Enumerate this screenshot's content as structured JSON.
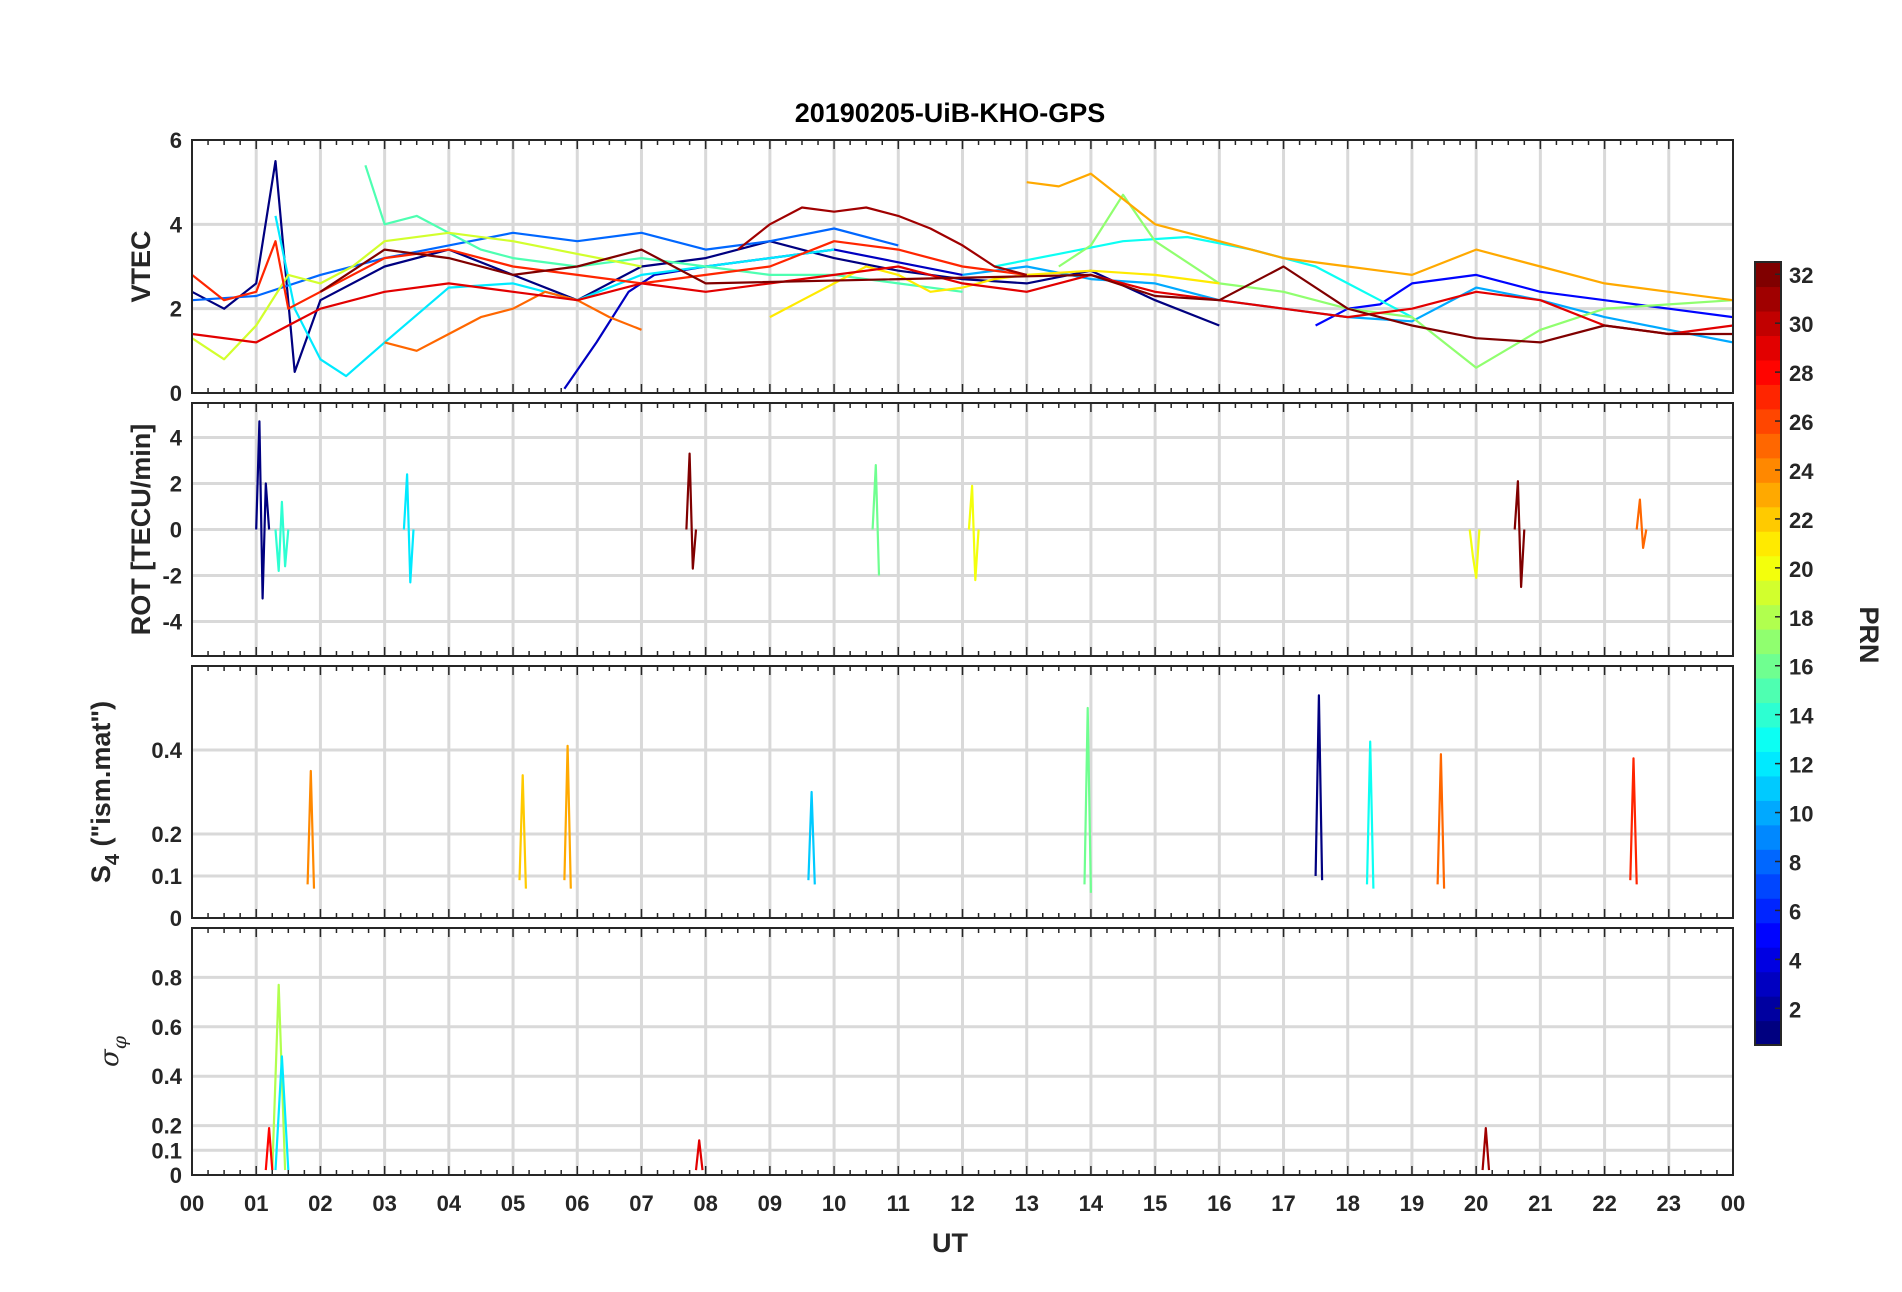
{
  "title": "20190205-UiB-KHO-GPS",
  "x_axis": {
    "label": "UT",
    "tick_labels": [
      "00",
      "01",
      "02",
      "03",
      "04",
      "05",
      "06",
      "07",
      "08",
      "09",
      "10",
      "11",
      "12",
      "13",
      "14",
      "15",
      "16",
      "17",
      "18",
      "19",
      "20",
      "21",
      "22",
      "23",
      "00"
    ]
  },
  "colorbar": {
    "label": "PRN",
    "range": [
      1,
      32
    ],
    "tick_labels": [
      "2",
      "4",
      "6",
      "8",
      "10",
      "12",
      "14",
      "16",
      "18",
      "20",
      "22",
      "24",
      "26",
      "28",
      "30",
      "32"
    ]
  },
  "chart_data": [
    {
      "type": "line",
      "ylabel": "VTEC",
      "ylim": [
        0,
        6
      ],
      "yticks": [
        "0",
        "2",
        "4",
        "6"
      ],
      "grid": true,
      "x_range_hours": [
        0,
        24
      ],
      "series_color_by": "PRN",
      "series": [
        {
          "prn": 1,
          "x": [
            0.0,
            0.5,
            1.0,
            1.3,
            1.6,
            2.0,
            3.0,
            4.0,
            5.0,
            6.0,
            7.0,
            8.0,
            9.0,
            10.0,
            11.0,
            12.0,
            13.0,
            14.0,
            15.0,
            16.0
          ],
          "y": [
            2.4,
            2.0,
            2.6,
            5.5,
            0.5,
            2.2,
            3.0,
            3.4,
            2.8,
            2.2,
            3.0,
            3.2,
            3.6,
            3.2,
            2.9,
            2.7,
            2.6,
            2.9,
            2.2,
            1.6
          ]
        },
        {
          "prn": 3,
          "x": [
            5.8,
            6.3,
            6.8,
            7.2,
            8.0,
            9.0,
            10.0,
            11.0,
            12.0
          ],
          "y": [
            0.1,
            1.2,
            2.4,
            2.8,
            3.0,
            3.2,
            3.4,
            3.1,
            2.8
          ]
        },
        {
          "prn": 5,
          "x": [
            17.5,
            18.0,
            18.5,
            19.0,
            20.0,
            21.0,
            22.0,
            23.0,
            24.0
          ],
          "y": [
            1.6,
            2.0,
            2.1,
            2.6,
            2.8,
            2.4,
            2.2,
            2.0,
            1.8
          ]
        },
        {
          "prn": 8,
          "x": [
            0.0,
            1.0,
            2.0,
            3.0,
            4.0,
            5.0,
            6.0,
            7.0,
            8.0,
            9.0,
            10.0,
            11.0
          ],
          "y": [
            2.2,
            2.3,
            2.8,
            3.2,
            3.5,
            3.8,
            3.6,
            3.8,
            3.4,
            3.6,
            3.9,
            3.5
          ]
        },
        {
          "prn": 10,
          "x": [
            12.0,
            13.0,
            14.0,
            15.0,
            16.0,
            17.0,
            18.0,
            19.0,
            20.0,
            21.0,
            22.0,
            23.0,
            24.0
          ],
          "y": [
            2.8,
            3.0,
            2.7,
            2.6,
            2.2,
            2.0,
            1.8,
            1.7,
            2.5,
            2.2,
            1.8,
            1.5,
            1.2
          ]
        },
        {
          "prn": 12,
          "x": [
            1.3,
            1.6,
            2.0,
            2.4,
            3.0,
            4.0,
            5.0,
            6.0,
            7.0,
            8.0,
            9.0,
            10.0
          ],
          "y": [
            4.2,
            2.0,
            0.8,
            0.4,
            1.2,
            2.5,
            2.6,
            2.2,
            2.8,
            3.0,
            3.2,
            3.4
          ]
        },
        {
          "prn": 13,
          "x": [
            12.5,
            13.5,
            14.5,
            15.5,
            16.5,
            17.5,
            18.0,
            18.5,
            19.0
          ],
          "y": [
            3.0,
            3.3,
            3.6,
            3.7,
            3.4,
            3.0,
            2.6,
            2.2,
            1.8
          ]
        },
        {
          "prn": 15,
          "x": [
            2.7,
            3.0,
            3.5,
            4.0,
            4.5,
            5.0,
            6.0,
            7.0,
            8.0,
            9.0,
            10.0,
            11.0,
            12.0
          ],
          "y": [
            5.4,
            4.0,
            4.2,
            3.8,
            3.4,
            3.2,
            3.0,
            3.2,
            3.0,
            2.8,
            2.8,
            2.6,
            2.4
          ]
        },
        {
          "prn": 17,
          "x": [
            13.5,
            14.0,
            14.5,
            15.0,
            16.0,
            17.0,
            18.0,
            19.0,
            20.0,
            21.0,
            22.0,
            23.0,
            24.0
          ],
          "y": [
            3.0,
            3.5,
            4.7,
            3.6,
            2.6,
            2.4,
            2.0,
            1.8,
            0.6,
            1.5,
            2.0,
            2.1,
            2.2
          ]
        },
        {
          "prn": 19,
          "x": [
            0.0,
            0.5,
            1.0,
            1.5,
            2.0,
            2.5,
            3.0,
            4.0,
            5.0,
            6.0,
            7.0
          ],
          "y": [
            1.3,
            0.8,
            1.6,
            2.8,
            2.6,
            3.0,
            3.6,
            3.8,
            3.6,
            3.3,
            3.0
          ]
        },
        {
          "prn": 21,
          "x": [
            9.0,
            9.5,
            10.0,
            10.5,
            11.0,
            11.5,
            12.0,
            12.5,
            13.0,
            14.0,
            15.0,
            16.0
          ],
          "y": [
            1.8,
            2.2,
            2.6,
            3.0,
            2.8,
            2.4,
            2.5,
            2.7,
            2.8,
            2.9,
            2.8,
            2.6
          ]
        },
        {
          "prn": 23,
          "x": [
            13.0,
            13.5,
            14.0,
            14.5,
            15.0,
            16.0,
            17.0,
            18.0,
            19.0,
            20.0,
            21.0,
            22.0,
            23.0,
            24.0
          ],
          "y": [
            5.0,
            4.9,
            5.2,
            4.6,
            4.0,
            3.6,
            3.2,
            3.0,
            2.8,
            3.4,
            3.0,
            2.6,
            2.4,
            2.2
          ]
        },
        {
          "prn": 25,
          "x": [
            3.0,
            3.5,
            4.0,
            4.5,
            5.0,
            5.5,
            6.0,
            6.5,
            7.0
          ],
          "y": [
            1.2,
            1.0,
            1.4,
            1.8,
            2.0,
            2.4,
            2.2,
            1.8,
            1.5
          ]
        },
        {
          "prn": 27,
          "x": [
            0.0,
            0.5,
            1.0,
            1.3,
            1.5,
            2.0,
            3.0,
            4.0,
            5.0,
            6.0,
            7.0,
            8.0,
            9.0,
            10.0,
            11.0,
            12.0,
            13.0
          ],
          "y": [
            2.8,
            2.2,
            2.4,
            3.6,
            2.0,
            2.4,
            3.2,
            3.4,
            3.0,
            2.8,
            2.6,
            2.8,
            3.0,
            3.6,
            3.4,
            3.0,
            2.8
          ]
        },
        {
          "prn": 29,
          "x": [
            0.0,
            1.0,
            1.5,
            2.0,
            3.0,
            4.0,
            5.0,
            6.0,
            7.0,
            8.0,
            9.0,
            10.0,
            11.0,
            12.0,
            13.0,
            14.0,
            15.0,
            16.0,
            17.0,
            18.0,
            19.0,
            20.0,
            21.0,
            22.0,
            23.0,
            24.0
          ],
          "y": [
            1.4,
            1.2,
            1.6,
            2.0,
            2.4,
            2.6,
            2.4,
            2.2,
            2.6,
            2.4,
            2.6,
            2.8,
            3.0,
            2.6,
            2.4,
            2.8,
            2.4,
            2.2,
            2.0,
            1.8,
            2.0,
            2.4,
            2.2,
            1.6,
            1.4,
            1.6
          ]
        },
        {
          "prn": 31,
          "x": [
            8.5,
            9.0,
            9.5,
            10.0,
            10.5,
            11.0,
            11.5,
            12.0,
            12.5,
            13.0
          ],
          "y": [
            3.4,
            4.0,
            4.4,
            4.3,
            4.4,
            4.2,
            3.9,
            3.5,
            3.0,
            2.8
          ]
        },
        {
          "prn": 32,
          "x": [
            2.0,
            3.0,
            4.0,
            5.0,
            6.0,
            7.0,
            8.0,
            14.0,
            15.0,
            16.0,
            17.0,
            18.0,
            19.0,
            20.0,
            21.0,
            22.0,
            23.0,
            24.0
          ],
          "y": [
            2.4,
            3.4,
            3.2,
            2.8,
            3.0,
            3.4,
            2.6,
            2.8,
            2.3,
            2.2,
            3.0,
            2.0,
            1.6,
            1.3,
            1.2,
            1.6,
            1.4,
            1.4
          ]
        }
      ]
    },
    {
      "type": "line",
      "ylabel": "ROT [TECU/min]",
      "ylim": [
        -5.5,
        5.5
      ],
      "yticks": [
        "-4",
        "-2",
        "0",
        "2",
        "4"
      ],
      "grid": true,
      "x_range_hours": [
        0,
        24
      ],
      "series_color_by": "PRN",
      "series": [
        {
          "prn": 1,
          "x": [
            1.0,
            1.05,
            1.1,
            1.15,
            1.2
          ],
          "y": [
            0.0,
            4.7,
            -3.0,
            2.0,
            0.0
          ]
        },
        {
          "prn": 14,
          "x": [
            1.3,
            1.35,
            1.4,
            1.45,
            1.5
          ],
          "y": [
            0.0,
            -1.8,
            1.2,
            -1.6,
            0.0
          ]
        },
        {
          "prn": 12,
          "x": [
            3.3,
            3.35,
            3.4,
            3.45
          ],
          "y": [
            0.0,
            2.4,
            -2.3,
            0.0
          ]
        },
        {
          "prn": 32,
          "x": [
            7.7,
            7.75,
            7.8,
            7.85
          ],
          "y": [
            0.0,
            3.3,
            -1.7,
            0.0
          ]
        },
        {
          "prn": 16,
          "x": [
            10.6,
            10.65,
            10.7
          ],
          "y": [
            0.0,
            2.8,
            -2.0
          ]
        },
        {
          "prn": 20,
          "x": [
            12.1,
            12.15,
            12.2,
            12.25
          ],
          "y": [
            0.0,
            1.9,
            -2.2,
            0.0
          ]
        },
        {
          "prn": 20,
          "x": [
            19.9,
            19.95,
            20.0,
            20.05
          ],
          "y": [
            0.0,
            -1.2,
            -2.1,
            0.0
          ]
        },
        {
          "prn": 32,
          "x": [
            20.6,
            20.65,
            20.7,
            20.75
          ],
          "y": [
            0.0,
            2.1,
            -2.5,
            0.0
          ]
        },
        {
          "prn": 25,
          "x": [
            22.5,
            22.55,
            22.6,
            22.65
          ],
          "y": [
            0.0,
            1.3,
            -0.8,
            0.0
          ]
        }
      ]
    },
    {
      "type": "line",
      "ylabel": "S4 (\"ism.mat\")",
      "ylim": [
        0,
        0.6
      ],
      "yticks": [
        "0",
        "0.1",
        "0.2",
        "0.4"
      ],
      "grid": true,
      "x_range_hours": [
        0,
        24
      ],
      "series_color_by": "PRN",
      "series": [
        {
          "prn": 1,
          "x": [
            17.5,
            17.55,
            17.6
          ],
          "y": [
            0.1,
            0.53,
            0.09
          ]
        },
        {
          "prn": 16,
          "x": [
            13.9,
            13.95,
            14.0
          ],
          "y": [
            0.08,
            0.5,
            0.06
          ]
        },
        {
          "prn": 13,
          "x": [
            18.3,
            18.35,
            18.4
          ],
          "y": [
            0.08,
            0.42,
            0.07
          ]
        },
        {
          "prn": 23,
          "x": [
            5.8,
            5.85,
            5.9
          ],
          "y": [
            0.09,
            0.41,
            0.07
          ]
        },
        {
          "prn": 25,
          "x": [
            19.4,
            19.45,
            19.5
          ],
          "y": [
            0.08,
            0.39,
            0.07
          ]
        },
        {
          "prn": 27,
          "x": [
            22.4,
            22.45,
            22.5
          ],
          "y": [
            0.09,
            0.38,
            0.08
          ]
        },
        {
          "prn": 24,
          "x": [
            1.8,
            1.85,
            1.9
          ],
          "y": [
            0.08,
            0.35,
            0.07
          ]
        },
        {
          "prn": 22,
          "x": [
            5.1,
            5.15,
            5.2
          ],
          "y": [
            0.09,
            0.34,
            0.07
          ]
        },
        {
          "prn": 11,
          "x": [
            9.6,
            9.65,
            9.7
          ],
          "y": [
            0.09,
            0.3,
            0.08
          ]
        }
      ]
    },
    {
      "type": "line",
      "ylabel": "σφ",
      "ylim": [
        0,
        1.0
      ],
      "yticks": [
        "0",
        "0.1",
        "0.2",
        "0.4",
        "0.6",
        "0.8"
      ],
      "grid": true,
      "x_range_hours": [
        0,
        24
      ],
      "series_color_by": "PRN",
      "series": [
        {
          "prn": 18,
          "x": [
            1.25,
            1.35,
            1.45
          ],
          "y": [
            0.02,
            0.77,
            0.02
          ]
        },
        {
          "prn": 12,
          "x": [
            1.3,
            1.4,
            1.5
          ],
          "y": [
            0.02,
            0.48,
            0.02
          ]
        },
        {
          "prn": 28,
          "x": [
            1.15,
            1.2,
            1.25
          ],
          "y": [
            0.02,
            0.19,
            0.02
          ]
        },
        {
          "prn": 29,
          "x": [
            7.85,
            7.9,
            7.95
          ],
          "y": [
            0.02,
            0.14,
            0.02
          ]
        },
        {
          "prn": 31,
          "x": [
            20.1,
            20.15,
            20.2
          ],
          "y": [
            0.02,
            0.19,
            0.02
          ]
        }
      ]
    }
  ]
}
